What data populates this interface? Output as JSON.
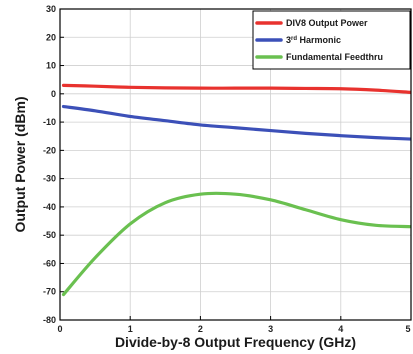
{
  "chart_data": {
    "type": "line",
    "title": "",
    "xlabel": "Divide-by-8 Output Frequency (GHz)",
    "ylabel": "Output Power (dBm)",
    "xlim": [
      0,
      5
    ],
    "ylim": [
      -80,
      30
    ],
    "xticks": [
      0,
      1,
      2,
      3,
      4,
      5
    ],
    "yticks": [
      30,
      20,
      10,
      0,
      -10,
      -20,
      -30,
      -40,
      -50,
      -60,
      -70,
      -80
    ],
    "grid": true,
    "legend": "top-right",
    "series": [
      {
        "name": "DIV8 Output Power",
        "color": "#e8322e",
        "x": [
          0.05,
          0.5,
          1.0,
          1.5,
          2.0,
          2.5,
          3.0,
          3.5,
          4.0,
          4.5,
          5.0
        ],
        "y": [
          3.0,
          2.7,
          2.3,
          2.1,
          2.0,
          2.0,
          2.0,
          1.9,
          1.8,
          1.3,
          0.5
        ]
      },
      {
        "name": "3rd Harmonic",
        "name_sup": "rd",
        "color": "#3c50b8",
        "x": [
          0.05,
          0.5,
          1.0,
          1.5,
          2.0,
          2.5,
          3.0,
          3.5,
          4.0,
          4.5,
          5.0
        ],
        "y": [
          -4.5,
          -6.0,
          -8.0,
          -9.5,
          -11.0,
          -12.0,
          -13.0,
          -14.0,
          -14.8,
          -15.5,
          -16.0
        ]
      },
      {
        "name": "Fundamental Feedthru",
        "color": "#6ac050",
        "x": [
          0.05,
          0.5,
          1.0,
          1.5,
          2.0,
          2.5,
          3.0,
          3.5,
          4.0,
          4.5,
          5.0
        ],
        "y": [
          -71.0,
          -58.0,
          -46.0,
          -38.5,
          -35.5,
          -35.5,
          -37.5,
          -41.0,
          -44.5,
          -46.5,
          -47.0
        ]
      }
    ]
  }
}
